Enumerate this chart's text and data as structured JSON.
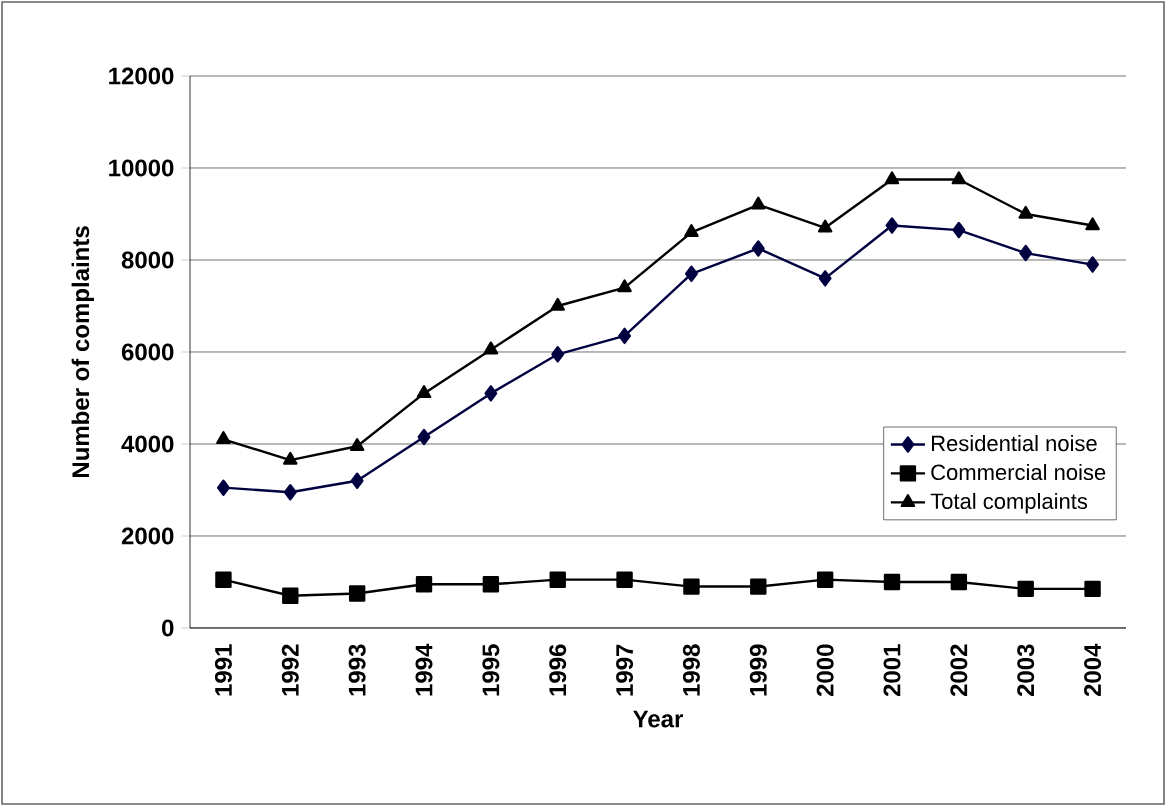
{
  "chart_data": {
    "type": "line",
    "xlabel": "Year",
    "ylabel": "Number of complaints",
    "categories": [
      "1991",
      "1992",
      "1993",
      "1994",
      "1995",
      "1996",
      "1997",
      "1998",
      "1999",
      "2000",
      "2001",
      "2002",
      "2003",
      "2004"
    ],
    "series": [
      {
        "name": "Residential noise",
        "color": "#000040",
        "marker": "diamond",
        "values": [
          3050,
          2950,
          3200,
          4150,
          5100,
          5950,
          6350,
          7700,
          8250,
          7600,
          8750,
          8650,
          8150,
          7900
        ]
      },
      {
        "name": "Commercial noise",
        "color": "#000000",
        "marker": "square",
        "values": [
          1050,
          700,
          750,
          950,
          950,
          1050,
          1050,
          900,
          900,
          1050,
          1000,
          1000,
          850,
          850
        ]
      },
      {
        "name": "Total complaints",
        "color": "#000000",
        "marker": "triangle",
        "values": [
          4100,
          3650,
          3950,
          5100,
          6050,
          7000,
          7400,
          8600,
          9200,
          8700,
          9750,
          9750,
          9000,
          8750
        ]
      }
    ],
    "ylim": [
      0,
      12000
    ],
    "yticks": [
      0,
      2000,
      4000,
      6000,
      8000,
      10000,
      12000
    ],
    "grid": "y",
    "legend": "right",
    "line_style": "solid"
  }
}
